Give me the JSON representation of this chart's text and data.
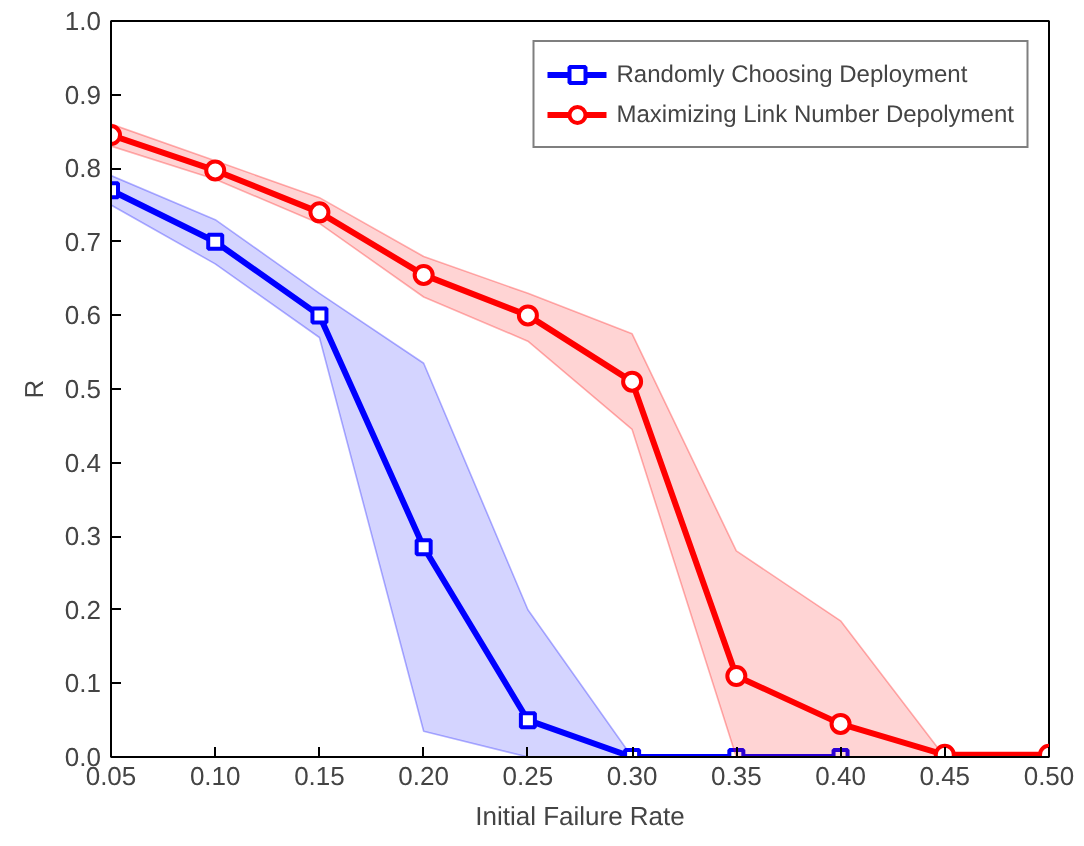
{
  "chart_data": {
    "type": "line",
    "xlabel": "Initial Failure Rate",
    "ylabel": "R",
    "xlim": [
      0.05,
      0.5
    ],
    "ylim": [
      0,
      1
    ],
    "xticks": [
      {
        "value": 0.05,
        "label": "0.05"
      },
      {
        "value": 0.1,
        "label": "0.10"
      },
      {
        "value": 0.15,
        "label": "0.15"
      },
      {
        "value": 0.2,
        "label": "0.20"
      },
      {
        "value": 0.25,
        "label": "0.25"
      },
      {
        "value": 0.3,
        "label": "0.30"
      },
      {
        "value": 0.35,
        "label": "0.35"
      },
      {
        "value": 0.4,
        "label": "0.40"
      },
      {
        "value": 0.45,
        "label": "0.45"
      },
      {
        "value": 0.5,
        "label": "0.50"
      }
    ],
    "yticks": [
      {
        "value": 0,
        "label": "0.0"
      },
      {
        "value": 0.1,
        "label": "0.1"
      },
      {
        "value": 0.2,
        "label": "0.2"
      },
      {
        "value": 0.3,
        "label": "0.3"
      },
      {
        "value": 0.4,
        "label": "0.4"
      },
      {
        "value": 0.5,
        "label": "0.5"
      },
      {
        "value": 0.6,
        "label": "0.6"
      },
      {
        "value": 0.7,
        "label": "0.7"
      },
      {
        "value": 0.8,
        "label": "0.8"
      },
      {
        "value": 0.9,
        "label": "0.9"
      },
      {
        "value": 1,
        "label": "1.0"
      }
    ],
    "grid": false,
    "legend": "top right",
    "line_style": "solid",
    "series": [
      {
        "name": "Randomly Choosing Deployment",
        "color": "#0000ff",
        "marker": "square",
        "x": [
          0.05,
          0.1,
          0.15,
          0.2,
          0.25,
          0.3,
          0.35,
          0.4
        ],
        "values": [
          0.77,
          0.7,
          0.6,
          0.285,
          0.05,
          0,
          0,
          0
        ],
        "lower": [
          0.75,
          0.67,
          0.57,
          0.035,
          0,
          0,
          0,
          0
        ],
        "upper": [
          0.79,
          0.73,
          0.63,
          0.535,
          0.2,
          0,
          0,
          0
        ]
      },
      {
        "name": "Maximizing Link Number Depolyment",
        "color": "#ff0000",
        "marker": "circle",
        "x": [
          0.05,
          0.1,
          0.15,
          0.2,
          0.25,
          0.3,
          0.35,
          0.4,
          0.45,
          0.5
        ],
        "values": [
          0.845,
          0.797,
          0.74,
          0.655,
          0.6,
          0.51,
          0.11,
          0.045,
          0.003,
          0.003
        ],
        "lower": [
          0.83,
          0.785,
          0.725,
          0.625,
          0.565,
          0.445,
          0,
          0,
          0,
          0
        ],
        "upper": [
          0.86,
          0.81,
          0.76,
          0.68,
          0.63,
          0.575,
          0.28,
          0.185,
          0,
          0
        ]
      }
    ]
  }
}
